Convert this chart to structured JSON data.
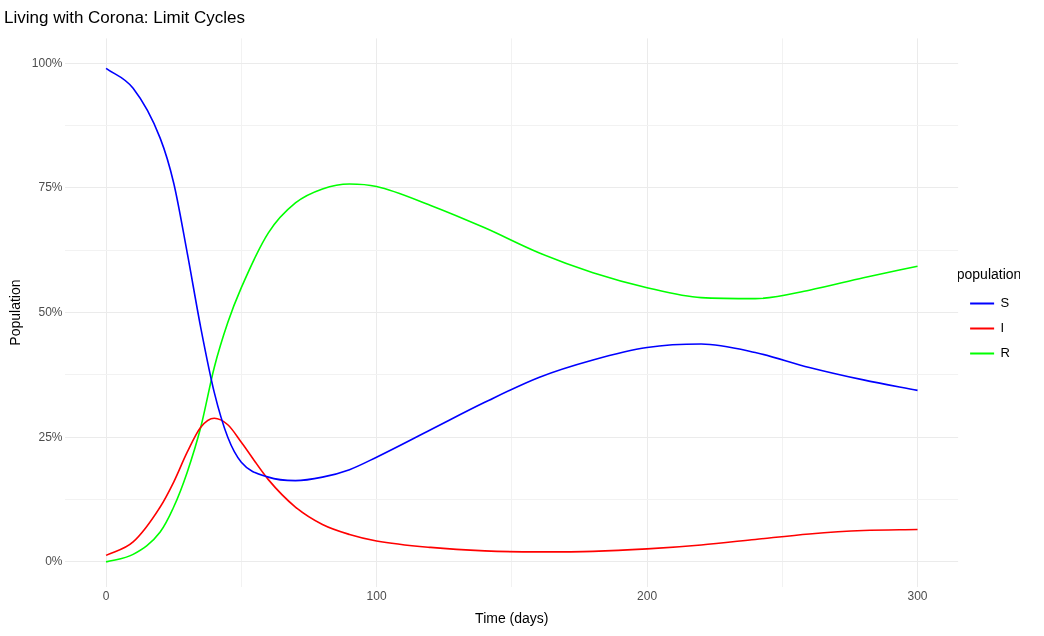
{
  "chart_data": {
    "type": "line",
    "title": "Living with Corona: Limit Cycles",
    "xlabel": "Time (days)",
    "ylabel": "Population",
    "legend_title": "population",
    "legend": "right",
    "grid": true,
    "marker": "none",
    "line_style": "solid",
    "xlim": [
      -15,
      315
    ],
    "xticks": [
      0,
      {
        "value": 50,
        "label": null
      },
      100,
      {
        "value": 150,
        "label": null
      },
      200,
      {
        "value": 250,
        "label": null
      },
      300
    ],
    "ylim": [
      -5,
      105
    ],
    "yticks": [
      {
        "value": 0,
        "label": "0%"
      },
      {
        "value": 12.5,
        "label": null
      },
      {
        "value": 25,
        "label": "25%"
      },
      {
        "value": 37.5,
        "label": null
      },
      {
        "value": 50,
        "label": "50%"
      },
      {
        "value": 62.5,
        "label": null
      },
      {
        "value": 75,
        "label": "75%"
      },
      {
        "value": 87.5,
        "label": null
      },
      {
        "value": 100,
        "label": "100%"
      }
    ],
    "x": [
      0,
      10,
      20,
      25,
      30,
      35,
      40,
      45,
      50,
      60,
      70,
      80,
      90,
      100,
      120,
      140,
      160,
      180,
      200,
      220,
      240,
      260,
      280,
      300
    ],
    "series": [
      {
        "name": "S",
        "color": "#0000ff",
        "values": [
          99,
          95,
          85,
          76,
          62,
          47,
          34,
          25,
          20,
          17,
          16.3,
          17,
          18.5,
          21,
          26.5,
          32,
          37,
          40.5,
          43,
          43.7,
          42,
          39,
          36.5,
          34.4
        ]
      },
      {
        "name": "I",
        "color": "#ff0000",
        "values": [
          1.3,
          4,
          11,
          16,
          22,
          27,
          28.8,
          27.5,
          24,
          16.5,
          11,
          7.5,
          5.5,
          4.2,
          2.9,
          2.2,
          2,
          2.1,
          2.6,
          3.4,
          4.5,
          5.6,
          6.3,
          6.5
        ]
      },
      {
        "name": "R",
        "color": "#00ff00",
        "values": [
          0,
          1.5,
          6,
          11,
          18,
          27,
          39,
          48,
          55,
          66,
          72,
          74.8,
          75.8,
          75.3,
          71.5,
          67,
          62,
          58,
          55,
          53,
          52.8,
          54.5,
          57,
          59.3
        ]
      }
    ]
  }
}
